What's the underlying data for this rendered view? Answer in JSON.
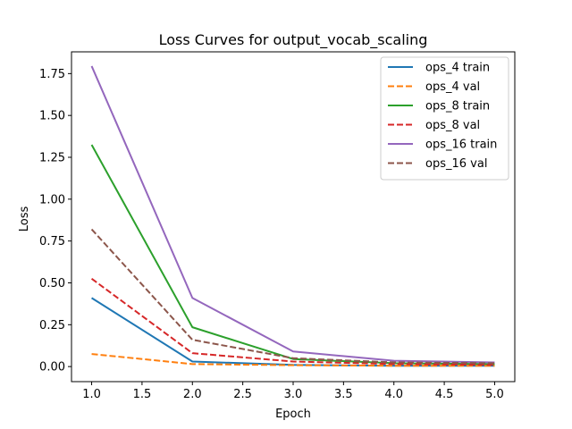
{
  "chart_data": {
    "type": "line",
    "title": "Loss Curves for output_vocab_scaling",
    "xlabel": "Epoch",
    "ylabel": "Loss",
    "xlim": [
      0.8,
      5.2
    ],
    "ylim": [
      -0.09,
      1.88
    ],
    "xticks": [
      1.0,
      1.5,
      2.0,
      2.5,
      3.0,
      3.5,
      4.0,
      4.5,
      5.0
    ],
    "xtick_labels": [
      "1.0",
      "1.5",
      "2.0",
      "2.5",
      "3.0",
      "3.5",
      "4.0",
      "4.5",
      "5.0"
    ],
    "yticks": [
      0.0,
      0.25,
      0.5,
      0.75,
      1.0,
      1.25,
      1.5,
      1.75
    ],
    "ytick_labels": [
      "0.00",
      "0.25",
      "0.50",
      "0.75",
      "1.00",
      "1.25",
      "1.50",
      "1.75"
    ],
    "grid": false,
    "legend_position": "top-right",
    "x": [
      1,
      2,
      3,
      4,
      5
    ],
    "series": [
      {
        "name": "ops_4 train",
        "color": "#1f77b4",
        "style": "solid",
        "values": [
          0.41,
          0.03,
          0.01,
          0.005,
          0.005
        ]
      },
      {
        "name": "ops_4 val",
        "color": "#ff7f0e",
        "style": "dashed",
        "values": [
          0.075,
          0.015,
          0.008,
          0.005,
          0.005
        ]
      },
      {
        "name": "ops_8 train",
        "color": "#2ca02c",
        "style": "solid",
        "values": [
          1.325,
          0.235,
          0.045,
          0.02,
          0.015
        ]
      },
      {
        "name": "ops_8 val",
        "color": "#d62728",
        "style": "dashed",
        "values": [
          0.525,
          0.08,
          0.03,
          0.015,
          0.01
        ]
      },
      {
        "name": "ops_16 train",
        "color": "#9467bd",
        "style": "solid",
        "values": [
          1.795,
          0.41,
          0.09,
          0.035,
          0.025
        ]
      },
      {
        "name": "ops_16 val",
        "color": "#8c564b",
        "style": "dashed",
        "values": [
          0.82,
          0.16,
          0.05,
          0.025,
          0.02
        ]
      }
    ]
  }
}
